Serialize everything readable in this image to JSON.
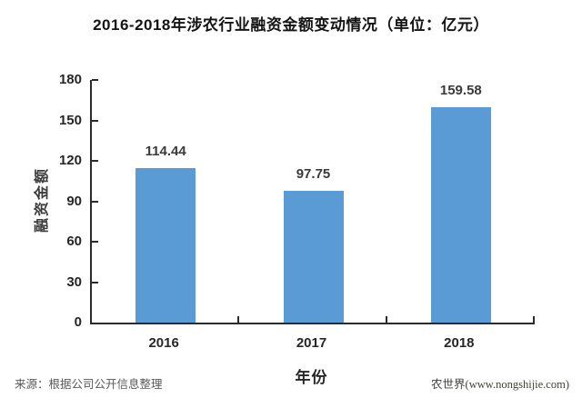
{
  "title": "2016-2018年涉农行业融资金额变动情况（单位：亿元）",
  "chart_data": {
    "type": "bar",
    "title": "2016-2018年涉农行业融资金额变动情况（单位：亿元）",
    "categories": [
      "2016",
      "2017",
      "2018"
    ],
    "values": [
      114.44,
      97.75,
      159.58
    ],
    "value_labels": [
      "114.44",
      "97.75",
      "159.58"
    ],
    "xlabel": "年份",
    "ylabel": "融资金额",
    "ylim": [
      0,
      180
    ],
    "yticks": [
      0,
      30,
      60,
      90,
      120,
      150,
      180
    ],
    "grid": false,
    "legend": "none",
    "bar_color": "#5B9BD5"
  },
  "footer": {
    "source": "来源：根据公司公开信息整理",
    "watermark": "农世界(www.nongshijie.com)"
  },
  "colors": {
    "bar": "#5B9BD5",
    "axis": "#2b2b2b",
    "title_text": "#141414",
    "tick_text": "#262626",
    "value_text": "#3a3a3a",
    "source_text": "#595959",
    "watermark_text": "#3f4038",
    "background": "#ffffff"
  }
}
